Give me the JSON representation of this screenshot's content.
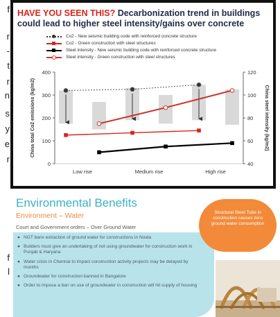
{
  "side_text": [
    "f",
    "r",
    "-",
    "t",
    "r",
    "n",
    "s",
    "y",
    "e",
    "r",
    "f",
    "l"
  ],
  "chart": {
    "title_highlight": "HAVE YOU SEEN THIS?",
    "title_rest": " Decarbonization trend in buildings could lead to higher steel intensity/gains over concrete",
    "legend": [
      {
        "label": "Co2 - New seismic building code with reinforced concrete structure",
        "color": "#333333",
        "marker": "circle",
        "dash": "dot"
      },
      {
        "label": "Co2 - Green construction with steel structures",
        "color": "#d8261e",
        "marker": "square",
        "dash": "solid"
      },
      {
        "label": "Steel intensity - New seismic building code with reinforced concrete structure",
        "color": "#000000",
        "marker": "square",
        "dash": "solid"
      },
      {
        "label": "Steel intensity - Green construction with steel structures",
        "color": "#c8382e",
        "marker": "circle",
        "dash": "solid"
      }
    ],
    "ylabel_left": "China total Co2 emissions (kg/m2)",
    "ylabel_right": "China steel intensity (kg/m2)",
    "colors": {
      "grey_bar": "#d9d9d9",
      "red": "#d8261e",
      "black": "#000000",
      "frame": "#111111"
    }
  },
  "chart_data": {
    "type": "line",
    "categories": [
      "Low rise",
      "Medium rise",
      "High rise"
    ],
    "x": [
      0,
      1,
      2,
      3,
      4,
      5
    ],
    "left_axis": {
      "ticks": [
        0,
        100,
        200,
        300,
        400
      ],
      "ylim": [
        0,
        400
      ]
    },
    "right_axis": {
      "ticks": [
        40,
        60,
        80,
        100,
        120
      ],
      "ylim": [
        40,
        120
      ]
    },
    "range_bars_left": [
      [
        175,
        320
      ],
      [
        150,
        270
      ],
      [
        190,
        330
      ],
      [
        175,
        300
      ],
      [
        190,
        345
      ],
      [
        170,
        325
      ]
    ],
    "series": [
      {
        "axis": "left",
        "x": [
          0,
          2,
          4
        ],
        "values": [
          320,
          325,
          345
        ]
      },
      {
        "axis": "left",
        "x": [
          0,
          2,
          4
        ],
        "values": [
          125,
          135,
          145
        ]
      },
      {
        "axis": "right",
        "x": [
          1,
          3,
          5
        ],
        "values": [
          50,
          55,
          58
        ]
      },
      {
        "axis": "right",
        "x": [
          1,
          3,
          5
        ],
        "values": [
          75,
          89,
          104
        ]
      }
    ],
    "arrows": [
      {
        "x": 0,
        "from": 320,
        "to": 175
      },
      {
        "x": 2,
        "from": 325,
        "to": 190
      },
      {
        "x": 4,
        "from": 345,
        "to": 190
      }
    ],
    "grid": false,
    "legend_position": "top"
  },
  "env": {
    "title": "Environmental Benefits",
    "subtitle": "Environment – Water",
    "court_line": "Court and Government orders – Over Ground Water",
    "items": [
      "NGT bans extraction of ground water for constructions in Noida",
      "Builders must give an undertaking of not using groundwater for construction work in Punjab & Haryana",
      "Water crisis in Chennai to impact construction activity projects may be delayed by months",
      "Groundwater for construction banned in Bangalore",
      "Order to impose a ban on use of groundwater in construction will hit supply of housing"
    ],
    "bullet": "●",
    "callout": "Structural Steel Tube in construction causes zero ground water consumption",
    "colors": {
      "title": "#3bb3c3",
      "subtitle": "#f08a3c",
      "box": "#b9e3ea",
      "callout": "#f28a3a"
    }
  }
}
